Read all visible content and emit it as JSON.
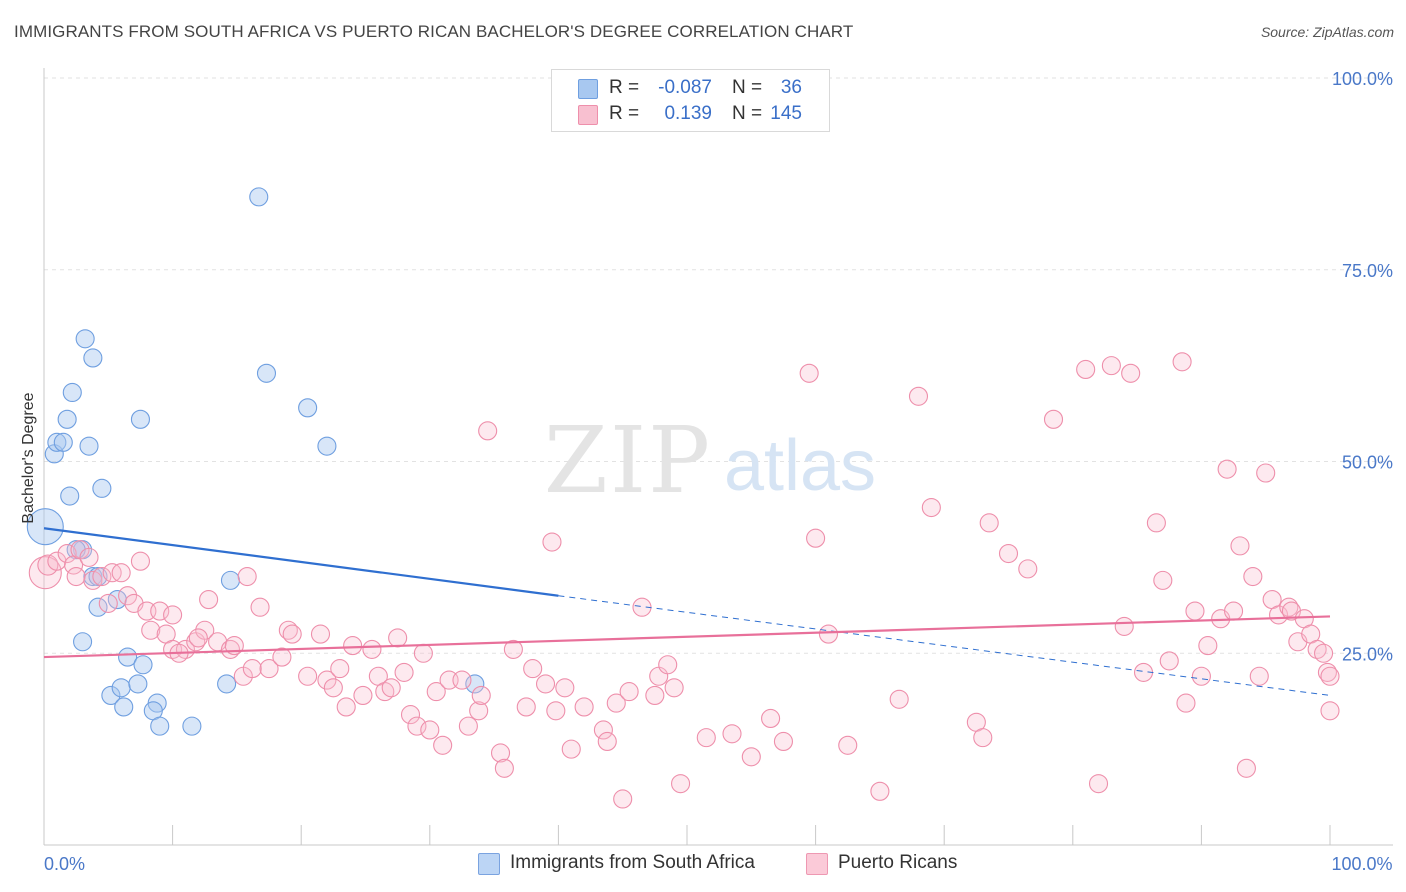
{
  "title": "IMMIGRANTS FROM SOUTH AFRICA VS PUERTO RICAN BACHELOR'S DEGREE CORRELATION CHART",
  "source": "Source: ZipAtlas.com",
  "watermark": {
    "zip": "ZIP",
    "atlas": "atlas"
  },
  "legend": {
    "rows": [
      {
        "r_label": "R =",
        "r_value": "-0.087",
        "n_label": "N =",
        "n_value": "36",
        "color": "#a8c8f0",
        "border": "#6f9fe0"
      },
      {
        "r_label": "R =",
        "r_value": "0.139",
        "n_label": "N =",
        "n_value": "145",
        "color": "#f8c0d0",
        "border": "#ee8fab"
      }
    ]
  },
  "bottom_legend": [
    {
      "label": "Immigrants from South Africa",
      "color": "#bcd5f5",
      "border": "#7aa3e0"
    },
    {
      "label": "Puerto Ricans",
      "color": "#fbcad8",
      "border": "#ee98b2"
    }
  ],
  "chart_data": {
    "type": "scatter",
    "ylabel": "Bachelor's Degree",
    "xlabel": "",
    "xlim": [
      0,
      100
    ],
    "ylim": [
      0,
      100
    ],
    "y_ticks": [
      {
        "value": 100,
        "label": "100.0%"
      },
      {
        "value": 75,
        "label": "75.0%"
      },
      {
        "value": 50,
        "label": "50.0%"
      },
      {
        "value": 25,
        "label": "25.0%"
      }
    ],
    "x_tick_labels": [
      {
        "value": 0,
        "label": "0.0%"
      },
      {
        "value": 100,
        "label": "100.0%"
      }
    ],
    "x_minor_ticks": [
      0,
      10,
      20,
      30,
      40,
      50,
      60,
      70,
      80,
      90,
      100
    ],
    "grid": true,
    "colors": {
      "blue": "#5b9be0",
      "blue_line": "#2f6fd0",
      "pink": "#ef8fab",
      "pink_line": "#e8709a",
      "tick_text": "#4a78c8"
    },
    "series": [
      {
        "name": "Immigrants from South Africa",
        "color": "#a8c8f0",
        "points": [
          [
            0.1,
            41.5,
            18
          ],
          [
            0.8,
            51.0,
            9
          ],
          [
            1.0,
            52.5,
            9
          ],
          [
            1.5,
            52.5,
            9
          ],
          [
            1.8,
            55.5,
            9
          ],
          [
            2.0,
            45.5,
            9
          ],
          [
            2.2,
            59.0,
            9
          ],
          [
            3.2,
            66.0,
            9
          ],
          [
            3.5,
            52.0,
            9
          ],
          [
            3.8,
            63.5,
            9
          ],
          [
            4.5,
            46.5,
            9
          ],
          [
            3.0,
            38.5,
            9
          ],
          [
            2.5,
            38.5,
            9
          ],
          [
            3.8,
            35.0,
            9
          ],
          [
            4.2,
            31.0,
            9
          ],
          [
            3.0,
            26.5,
            9
          ],
          [
            5.7,
            32.0,
            9
          ],
          [
            7.5,
            55.5,
            9
          ],
          [
            6.5,
            24.5,
            9
          ],
          [
            7.7,
            23.5,
            9
          ],
          [
            5.2,
            19.5,
            9
          ],
          [
            6.0,
            20.5,
            9
          ],
          [
            7.3,
            21.0,
            9
          ],
          [
            6.2,
            18.0,
            9
          ],
          [
            8.8,
            18.5,
            9
          ],
          [
            8.5,
            17.5,
            9
          ],
          [
            9.0,
            15.5,
            9
          ],
          [
            11.5,
            15.5,
            9
          ],
          [
            14.2,
            21.0,
            9
          ],
          [
            16.7,
            84.5,
            9
          ],
          [
            17.3,
            61.5,
            9
          ],
          [
            20.5,
            57.0,
            9
          ],
          [
            22.0,
            52.0,
            9
          ],
          [
            14.5,
            34.5,
            9
          ],
          [
            33.5,
            21.0,
            9
          ],
          [
            4.2,
            35.0,
            9
          ]
        ]
      },
      {
        "name": "Puerto Ricans",
        "color": "#f8c0d0",
        "points": [
          [
            0.1,
            35.5,
            16
          ],
          [
            0.3,
            36.5,
            10
          ],
          [
            1.0,
            37.0,
            9
          ],
          [
            1.8,
            38.0,
            9
          ],
          [
            2.3,
            36.5,
            9
          ],
          [
            2.8,
            38.5,
            9
          ],
          [
            3.5,
            37.5,
            9
          ],
          [
            2.5,
            35.0,
            9
          ],
          [
            3.8,
            34.5,
            9
          ],
          [
            4.5,
            35.0,
            9
          ],
          [
            5.3,
            35.5,
            9
          ],
          [
            6.0,
            35.5,
            9
          ],
          [
            7.5,
            37.0,
            9
          ],
          [
            5.0,
            31.5,
            9
          ],
          [
            6.5,
            32.5,
            9
          ],
          [
            7.0,
            31.5,
            9
          ],
          [
            8.0,
            30.5,
            9
          ],
          [
            9.0,
            30.5,
            9
          ],
          [
            10.0,
            30.0,
            9
          ],
          [
            8.3,
            28.0,
            9
          ],
          [
            9.5,
            27.5,
            9
          ],
          [
            10.0,
            25.5,
            9
          ],
          [
            11.0,
            25.5,
            9
          ],
          [
            11.8,
            26.5,
            9
          ],
          [
            12.5,
            28.0,
            9
          ],
          [
            12.8,
            32.0,
            9
          ],
          [
            13.5,
            26.5,
            9
          ],
          [
            14.5,
            25.5,
            9
          ],
          [
            14.8,
            26.0,
            9
          ],
          [
            15.5,
            22.0,
            9
          ],
          [
            16.2,
            23.0,
            9
          ],
          [
            16.8,
            31.0,
            9
          ],
          [
            15.8,
            35.0,
            9
          ],
          [
            17.5,
            23.0,
            9
          ],
          [
            18.5,
            24.5,
            9
          ],
          [
            19.0,
            28.0,
            9
          ],
          [
            19.3,
            27.5,
            9
          ],
          [
            20.5,
            22.0,
            9
          ],
          [
            21.5,
            27.5,
            9
          ],
          [
            22.0,
            21.5,
            9
          ],
          [
            22.5,
            20.5,
            9
          ],
          [
            23.0,
            23.0,
            9
          ],
          [
            23.5,
            18.0,
            9
          ],
          [
            24.0,
            26.0,
            9
          ],
          [
            24.8,
            19.5,
            9
          ],
          [
            25.5,
            25.5,
            9
          ],
          [
            26.0,
            22.0,
            9
          ],
          [
            26.5,
            20.0,
            9
          ],
          [
            27.0,
            20.5,
            9
          ],
          [
            27.5,
            27.0,
            9
          ],
          [
            28.0,
            22.5,
            9
          ],
          [
            28.5,
            17.0,
            9
          ],
          [
            29.0,
            15.5,
            9
          ],
          [
            29.5,
            25.0,
            9
          ],
          [
            30.0,
            15.0,
            9
          ],
          [
            30.5,
            20.0,
            9
          ],
          [
            31.0,
            13.0,
            9
          ],
          [
            31.5,
            21.5,
            9
          ],
          [
            32.5,
            21.5,
            9
          ],
          [
            33.0,
            15.5,
            9
          ],
          [
            33.8,
            17.5,
            9
          ],
          [
            34.0,
            19.5,
            9
          ],
          [
            34.5,
            54.0,
            9
          ],
          [
            35.5,
            12.0,
            9
          ],
          [
            35.8,
            10.0,
            9
          ],
          [
            36.5,
            25.5,
            9
          ],
          [
            37.5,
            18.0,
            9
          ],
          [
            38.0,
            23.0,
            9
          ],
          [
            39.0,
            21.0,
            9
          ],
          [
            39.5,
            39.5,
            9
          ],
          [
            39.8,
            17.5,
            9
          ],
          [
            40.5,
            20.5,
            9
          ],
          [
            41.0,
            12.5,
            9
          ],
          [
            42.0,
            18.0,
            9
          ],
          [
            43.5,
            15.0,
            9
          ],
          [
            43.8,
            13.5,
            9
          ],
          [
            44.5,
            18.5,
            9
          ],
          [
            45.0,
            6.0,
            9
          ],
          [
            45.5,
            20.0,
            9
          ],
          [
            46.5,
            31.0,
            9
          ],
          [
            47.5,
            19.5,
            9
          ],
          [
            47.8,
            22.0,
            9
          ],
          [
            48.5,
            23.5,
            9
          ],
          [
            49.0,
            20.5,
            9
          ],
          [
            49.5,
            8.0,
            9
          ],
          [
            51.5,
            14.0,
            9
          ],
          [
            53.5,
            14.5,
            9
          ],
          [
            55.0,
            11.5,
            9
          ],
          [
            56.5,
            16.5,
            9
          ],
          [
            57.5,
            13.5,
            9
          ],
          [
            59.5,
            61.5,
            9
          ],
          [
            60.0,
            40.0,
            9
          ],
          [
            61.0,
            27.5,
            9
          ],
          [
            62.5,
            13.0,
            9
          ],
          [
            65.0,
            7.0,
            9
          ],
          [
            66.5,
            19.0,
            9
          ],
          [
            68.0,
            58.5,
            9
          ],
          [
            69.0,
            44.0,
            9
          ],
          [
            72.5,
            16.0,
            9
          ],
          [
            73.0,
            14.0,
            9
          ],
          [
            73.5,
            42.0,
            9
          ],
          [
            75.0,
            38.0,
            9
          ],
          [
            76.5,
            36.0,
            9
          ],
          [
            78.5,
            55.5,
            9
          ],
          [
            81.0,
            62.0,
            9
          ],
          [
            82.0,
            8.0,
            9
          ],
          [
            83.0,
            62.5,
            9
          ],
          [
            84.0,
            28.5,
            9
          ],
          [
            84.5,
            61.5,
            9
          ],
          [
            85.5,
            22.5,
            9
          ],
          [
            86.5,
            42.0,
            9
          ],
          [
            87.0,
            34.5,
            9
          ],
          [
            87.5,
            24.0,
            9
          ],
          [
            88.5,
            63.0,
            9
          ],
          [
            88.8,
            18.5,
            9
          ],
          [
            89.5,
            30.5,
            9
          ],
          [
            90.0,
            22.0,
            9
          ],
          [
            90.5,
            26.0,
            9
          ],
          [
            91.5,
            29.5,
            9
          ],
          [
            92.0,
            49.0,
            9
          ],
          [
            92.5,
            30.5,
            9
          ],
          [
            93.0,
            39.0,
            9
          ],
          [
            93.5,
            10.0,
            9
          ],
          [
            94.0,
            35.0,
            9
          ],
          [
            94.5,
            22.0,
            9
          ],
          [
            95.0,
            48.5,
            9
          ],
          [
            95.5,
            32.0,
            9
          ],
          [
            96.0,
            30.0,
            9
          ],
          [
            96.8,
            31.0,
            9
          ],
          [
            97.0,
            30.5,
            9
          ],
          [
            97.5,
            26.5,
            9
          ],
          [
            98.0,
            29.5,
            9
          ],
          [
            98.5,
            27.5,
            9
          ],
          [
            99.0,
            25.5,
            9
          ],
          [
            99.5,
            25.0,
            9
          ],
          [
            99.8,
            22.5,
            9
          ],
          [
            100.0,
            17.5,
            9
          ],
          [
            100.0,
            22.0,
            9
          ],
          [
            12.0,
            27.0,
            9
          ],
          [
            10.5,
            25.0,
            9
          ]
        ]
      }
    ],
    "trend_lines": [
      {
        "series": "Immigrants from South Africa",
        "x1": 0,
        "y1": 41.3,
        "x2": 40.0,
        "y2": 32.5,
        "dashed_to_x": 100,
        "dashed_to_y": 19.5
      },
      {
        "series": "Puerto Ricans",
        "x1": 0,
        "y1": 24.5,
        "x2": 100,
        "y2": 29.8
      }
    ]
  }
}
